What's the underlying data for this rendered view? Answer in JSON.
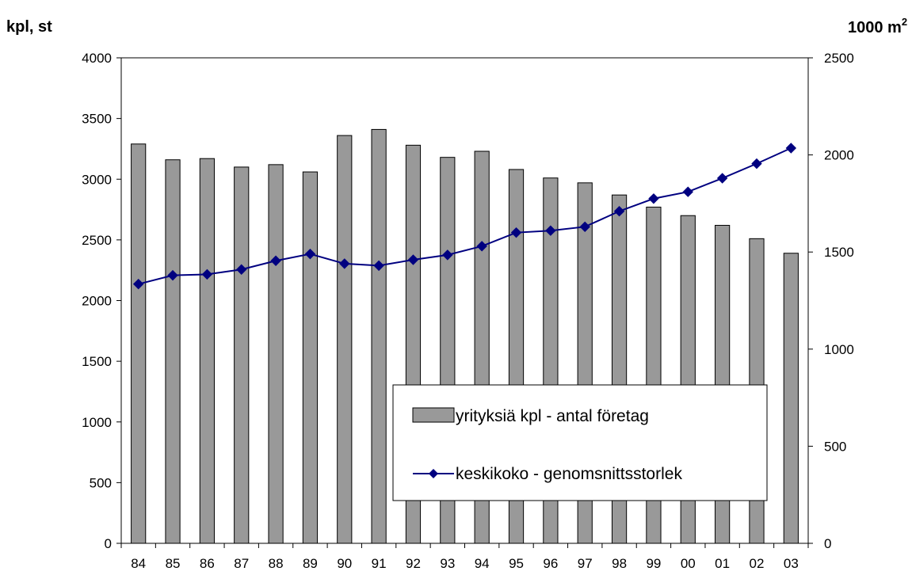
{
  "chart_data": {
    "type": "bar",
    "categories": [
      "84",
      "85",
      "86",
      "87",
      "88",
      "89",
      "90",
      "91",
      "92",
      "93",
      "94",
      "95",
      "96",
      "97",
      "98",
      "99",
      "00",
      "01",
      "02",
      "03"
    ],
    "left_axis": {
      "title": "kpl, st",
      "ylim": [
        0,
        4000
      ],
      "ticks": [
        0,
        500,
        1000,
        1500,
        2000,
        2500,
        3000,
        3500,
        4000
      ]
    },
    "right_axis": {
      "title": "1000 m",
      "title_sup": "2",
      "ylim": [
        0,
        2500
      ],
      "ticks": [
        0,
        500,
        1000,
        1500,
        2000,
        2500
      ]
    },
    "series": [
      {
        "name": "yrityksiä kpl - antal företag",
        "type": "bar",
        "axis": "left",
        "color": "#999999",
        "values": [
          3290,
          3160,
          3170,
          3100,
          3120,
          3060,
          3360,
          3410,
          3280,
          3180,
          3230,
          3080,
          3010,
          2970,
          2870,
          2770,
          2700,
          2620,
          2510,
          2390
        ]
      },
      {
        "name": "keskikoko - genomsnittsstorlek",
        "type": "line",
        "axis": "right",
        "marker": "diamond",
        "color": "#000080",
        "values": [
          1335,
          1380,
          1385,
          1410,
          1455,
          1490,
          1440,
          1430,
          1460,
          1485,
          1530,
          1600,
          1610,
          1630,
          1710,
          1775,
          1810,
          1880,
          1955,
          2035
        ]
      }
    ],
    "grid": false,
    "legend_position": "bottom-right-inside"
  }
}
